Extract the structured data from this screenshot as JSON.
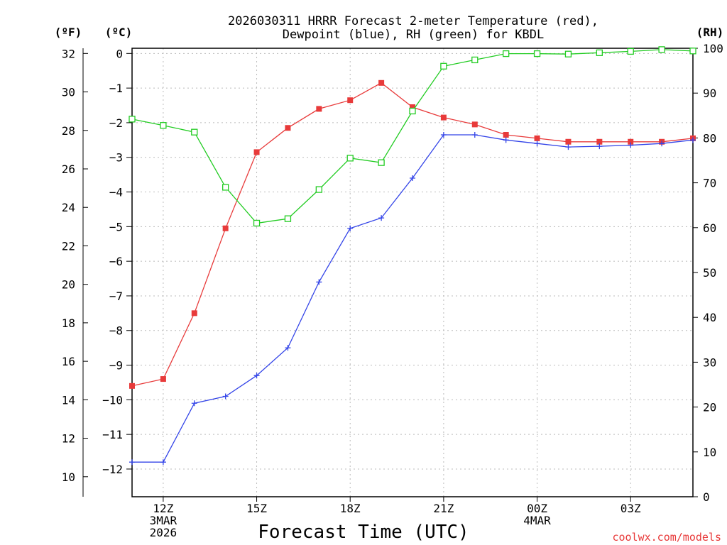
{
  "chart_data": {
    "type": "line",
    "title_line1": "2026030311 HRRR Forecast 2-meter Temperature (red),",
    "title_line2": "Dewpoint (blue), RH (green) for KBDL",
    "xlabel": "Forecast Time (UTC)",
    "credit": "coolwx.com/models",
    "unit_f": "(ºF)",
    "unit_c": "(ºC)",
    "unit_rh": "(RH)",
    "x_hours": [
      11,
      12,
      13,
      14,
      15,
      16,
      17,
      18,
      19,
      20,
      21,
      22,
      23,
      24,
      25,
      26,
      27,
      28,
      29
    ],
    "x_range": [
      11,
      29
    ],
    "x_ticks": [
      {
        "h": 12,
        "l1": "12Z",
        "l2": "3MAR",
        "l3": "2026"
      },
      {
        "h": 15,
        "l1": "15Z"
      },
      {
        "h": 18,
        "l1": "18Z"
      },
      {
        "h": 21,
        "l1": "21Z"
      },
      {
        "h": 24,
        "l1": "00Z",
        "l2": "4MAR"
      },
      {
        "h": 27,
        "l1": "03Z"
      }
    ],
    "c_range": [
      -12.8,
      0.15
    ],
    "c_ticks": [
      0,
      -1,
      -2,
      -3,
      -4,
      -5,
      -6,
      -7,
      -8,
      -9,
      -10,
      -11,
      -12
    ],
    "f_ticks": [
      32,
      30,
      28,
      26,
      24,
      22,
      20,
      18,
      16,
      14,
      12,
      10
    ],
    "rh_range": [
      0,
      100
    ],
    "rh_ticks": [
      100,
      90,
      80,
      70,
      60,
      50,
      40,
      30,
      20,
      10,
      0
    ],
    "series": [
      {
        "name": "Temperature",
        "unit": "C",
        "color": "#e83a3a",
        "marker": "square",
        "values": [
          -9.6,
          -9.4,
          -7.5,
          -5.05,
          -2.85,
          -2.15,
          -1.6,
          -1.35,
          -0.85,
          -1.55,
          -1.85,
          -2.05,
          -2.35,
          -2.45,
          -2.55,
          -2.55,
          -2.55,
          -2.55,
          -2.45
        ]
      },
      {
        "name": "Dewpoint",
        "unit": "C",
        "color": "#3344e8",
        "marker": "plus",
        "values": [
          -11.8,
          -11.8,
          -10.1,
          -9.9,
          -9.3,
          -8.5,
          -6.6,
          -5.05,
          -4.75,
          -3.6,
          -2.35,
          -2.35,
          -2.5,
          -2.6,
          -2.7,
          -2.68,
          -2.65,
          -2.6,
          -2.5
        ]
      },
      {
        "name": "RH",
        "unit": "%",
        "color": "#22cc22",
        "marker": "open-square",
        "values": [
          84.2,
          82.8,
          81.3,
          69.0,
          61.0,
          62.0,
          68.5,
          75.5,
          74.5,
          86.0,
          96.0,
          97.4,
          98.8,
          98.8,
          98.7,
          99.0,
          99.3,
          99.7,
          99.4
        ]
      }
    ]
  }
}
